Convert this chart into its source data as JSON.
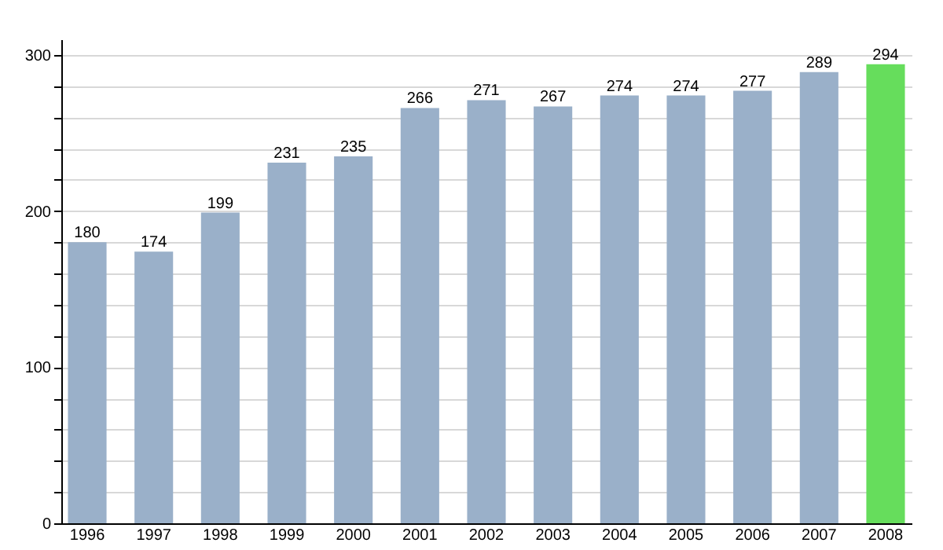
{
  "chart_data": {
    "type": "bar",
    "categories": [
      "1996",
      "1997",
      "1998",
      "1999",
      "2000",
      "2001",
      "2002",
      "2003",
      "2004",
      "2005",
      "2006",
      "2007",
      "2008"
    ],
    "values": [
      180,
      174,
      199,
      231,
      235,
      266,
      271,
      267,
      274,
      274,
      277,
      289,
      294
    ],
    "colors": [
      "#9ab0c9",
      "#9ab0c9",
      "#9ab0c9",
      "#9ab0c9",
      "#9ab0c9",
      "#9ab0c9",
      "#9ab0c9",
      "#9ab0c9",
      "#9ab0c9",
      "#9ab0c9",
      "#9ab0c9",
      "#9ab0c9",
      "#66dd5c"
    ],
    "ylim": [
      0,
      310
    ],
    "yticks": [
      0,
      {
        "value": 20,
        "label": null
      },
      {
        "value": 40,
        "label": null
      },
      {
        "value": 60,
        "label": null
      },
      {
        "value": 80,
        "label": null
      },
      100,
      {
        "value": 120,
        "label": null
      },
      {
        "value": 140,
        "label": null
      },
      {
        "value": 160,
        "label": null
      },
      {
        "value": 180,
        "label": null
      },
      200,
      {
        "value": 220,
        "label": null
      },
      {
        "value": 240,
        "label": null
      },
      {
        "value": 260,
        "label": null
      },
      {
        "value": 280,
        "label": null
      },
      300
    ],
    "grid": true,
    "data_labels": true
  }
}
